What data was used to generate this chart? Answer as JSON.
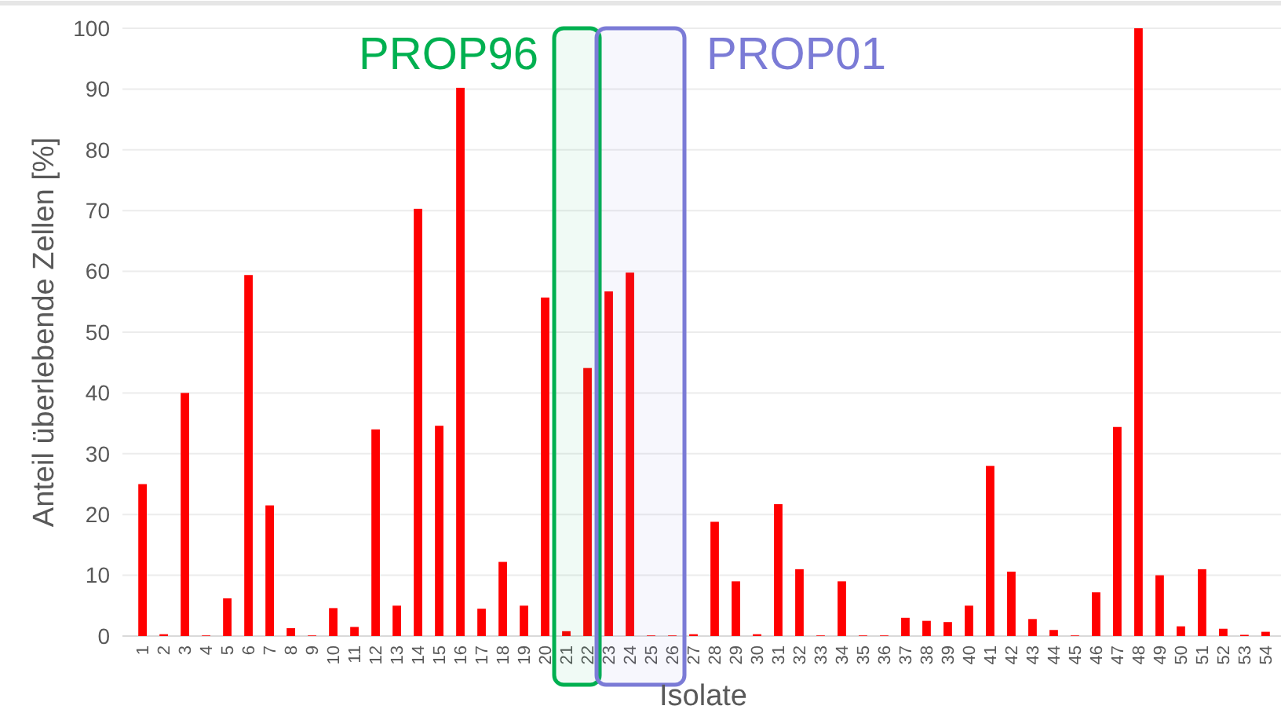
{
  "chart_data": {
    "type": "bar",
    "xlabel": "Isolate",
    "ylabel": "Anteil überlebende Zellen [%]",
    "categories": [
      "1",
      "2",
      "3",
      "4",
      "5",
      "6",
      "7",
      "8",
      "9",
      "10",
      "11",
      "12",
      "13",
      "14",
      "15",
      "16",
      "17",
      "18",
      "19",
      "20",
      "21",
      "22",
      "23",
      "24",
      "25",
      "26",
      "27",
      "28",
      "29",
      "30",
      "31",
      "32",
      "33",
      "34",
      "35",
      "36",
      "37",
      "38",
      "39",
      "40",
      "41",
      "42",
      "43",
      "44",
      "45",
      "46",
      "47",
      "48",
      "49",
      "50",
      "51",
      "52",
      "53",
      "54"
    ],
    "values": [
      25,
      0.3,
      40,
      0.1,
      6.2,
      59.4,
      21.5,
      1.3,
      0.1,
      4.6,
      1.5,
      34,
      5,
      70.3,
      34.6,
      90.2,
      4.5,
      12.2,
      5,
      55.7,
      0.8,
      44.1,
      56.7,
      59.8,
      0.1,
      0.1,
      0.3,
      18.8,
      9,
      0.3,
      21.7,
      11,
      0.1,
      9,
      0.1,
      0.1,
      3,
      2.5,
      2.3,
      5,
      28,
      10.6,
      2.8,
      1,
      0.1,
      7.2,
      34.4,
      100,
      10,
      1.6,
      11,
      1.2,
      0.2,
      0.7
    ],
    "color": "#ff0000",
    "ylim": [
      0,
      100
    ],
    "yticks": [
      0,
      10,
      20,
      30,
      40,
      50,
      60,
      70,
      80,
      90,
      100
    ],
    "grid": "y",
    "bands": [
      {
        "axis": "x",
        "from": "21",
        "to": "22",
        "label": "PROP96",
        "color": "#00b050"
      },
      {
        "axis": "x",
        "from": "23",
        "to": "26",
        "label": "PROP01",
        "color": "#7b7bd6"
      }
    ]
  }
}
